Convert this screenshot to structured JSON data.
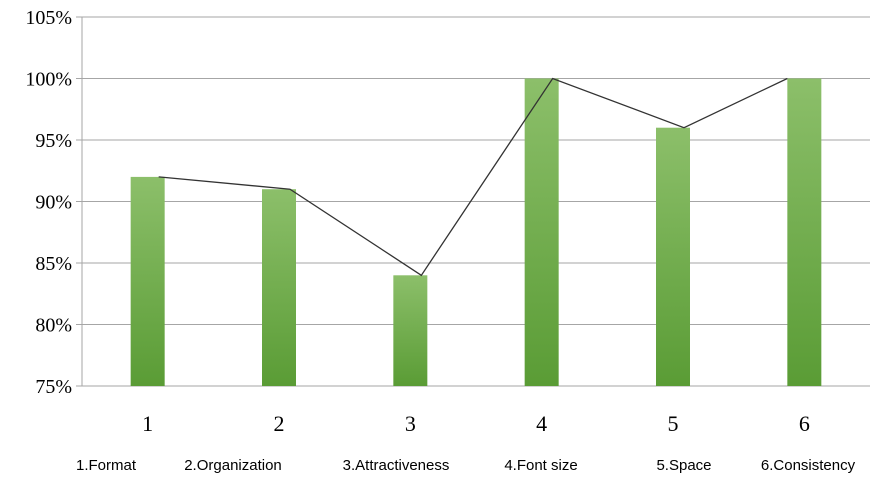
{
  "chart_data": {
    "type": "bar",
    "categories": [
      "1",
      "2",
      "3",
      "4",
      "5",
      "6"
    ],
    "values": [
      92,
      91,
      84,
      100,
      96,
      100
    ],
    "y_unit": "%",
    "ylim": [
      75,
      105
    ],
    "y_ticks": [
      "75%",
      "80%",
      "85%",
      "90%",
      "95%",
      "100%",
      "105%"
    ],
    "overlay_line": true,
    "grid": "horizontal",
    "category_key": [
      "1.Format",
      "2.Organization",
      "3.Attractiveness",
      "4.Font size",
      "5.Space",
      "6.Consistency"
    ],
    "colors": {
      "bar_light": "#8cbf6a",
      "bar_dark": "#5a9c35",
      "line": "#333333",
      "grid": "#a6a6a6"
    }
  }
}
